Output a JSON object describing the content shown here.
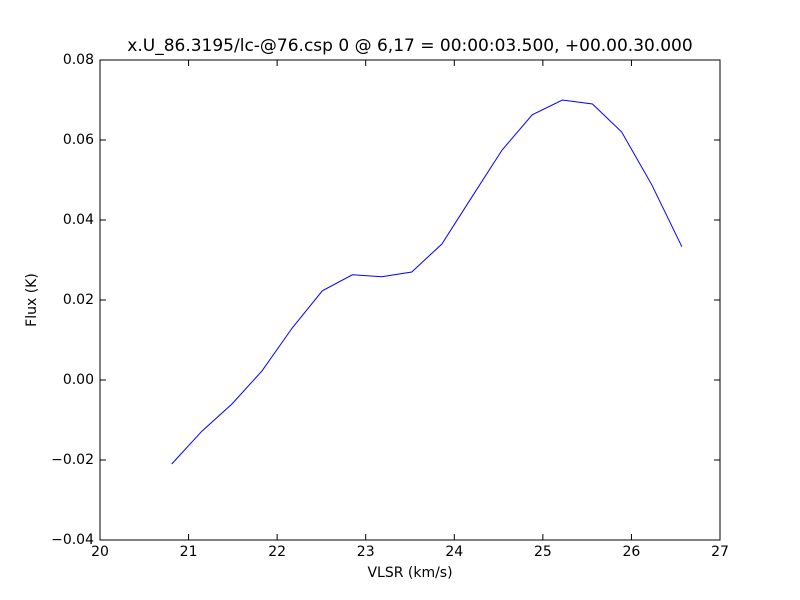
{
  "chart_data": {
    "type": "line",
    "title": "x.U_86.3195/lc-@76.csp 0 @ 6,17 = 00:00:03.500, +00.00.30.000",
    "x_label": "VLSR (km/s)",
    "y_label": "Flux (K)",
    "x": [
      20.81,
      21.15,
      21.49,
      21.83,
      22.17,
      22.51,
      22.85,
      23.18,
      23.52,
      23.86,
      24.2,
      24.54,
      24.88,
      25.22,
      25.56,
      25.89,
      26.23,
      26.57
    ],
    "series": [
      {
        "color": "#0000ff",
        "values": [
          -0.021,
          -0.0128,
          -0.006,
          0.0023,
          0.013,
          0.0223,
          0.0263,
          0.0258,
          0.027,
          0.034,
          0.0458,
          0.0575,
          0.0663,
          0.07,
          0.069,
          0.062,
          0.0488,
          0.0333
        ]
      }
    ],
    "xlim": [
      20,
      27
    ],
    "xticks": [
      20,
      21,
      22,
      23,
      24,
      25,
      26,
      27
    ],
    "ylim": [
      -0.04,
      0.08
    ],
    "yticks": [
      {
        "value": -0.04,
        "label": "−0.04"
      },
      {
        "value": -0.02,
        "label": "−0.02"
      },
      {
        "value": 0,
        "label": "0.00"
      },
      {
        "value": 0.02,
        "label": "0.02"
      },
      {
        "value": 0.04,
        "label": "0.04"
      },
      {
        "value": 0.06,
        "label": "0.06"
      },
      {
        "value": 0.08,
        "label": "0.08"
      }
    ],
    "grid": false
  }
}
